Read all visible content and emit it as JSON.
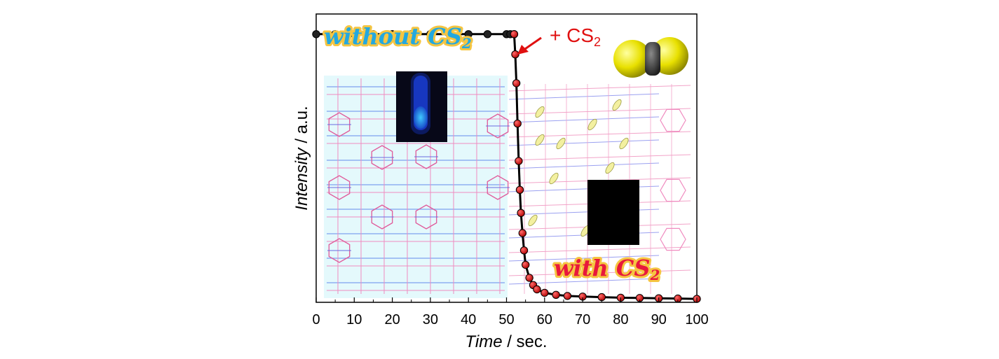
{
  "chart_data": {
    "type": "line",
    "xlabel_emph": "Time",
    "xlabel_unit": " / sec.",
    "ylabel_emph": "Intensity",
    "ylabel_unit": " / a.u.",
    "xlim": [
      0,
      100
    ],
    "ylim": [
      0,
      1
    ],
    "xticks": [
      0,
      10,
      20,
      30,
      40,
      50,
      60,
      70,
      80,
      90,
      100
    ],
    "xtick_labels": [
      "0",
      "10",
      "20",
      "30",
      "40",
      "50",
      "60",
      "70",
      "80",
      "90",
      "100"
    ],
    "grid": false,
    "series": [
      {
        "color": "#000000",
        "x": [
          0,
          5,
          10,
          15,
          20,
          25,
          30,
          35,
          40,
          45,
          50,
          51,
          52
        ],
        "y": [
          0.93,
          0.93,
          0.93,
          0.93,
          0.93,
          0.93,
          0.93,
          0.93,
          0.93,
          0.93,
          0.93,
          0.93,
          0.93
        ]
      },
      {
        "color": "#d00000",
        "x": [
          52,
          52.3,
          52.6,
          52.9,
          53.2,
          53.5,
          53.8,
          54.2,
          54.6,
          55,
          56,
          57,
          58,
          60,
          63,
          66,
          70,
          75,
          80,
          85,
          90,
          95,
          100
        ],
        "y": [
          0.93,
          0.86,
          0.76,
          0.62,
          0.49,
          0.39,
          0.31,
          0.24,
          0.18,
          0.13,
          0.085,
          0.06,
          0.045,
          0.033,
          0.026,
          0.022,
          0.02,
          0.018,
          0.016,
          0.015,
          0.014,
          0.013,
          0.012
        ]
      }
    ],
    "annotations": [
      {
        "text_main": "without CS",
        "text_sub": "2",
        "color": "#23a8e0"
      },
      {
        "text_main": "with CS",
        "text_sub": "2",
        "color": "#e8183c"
      },
      {
        "text_main": "+ CS",
        "text_sub": "2",
        "color": "#e01010"
      }
    ]
  }
}
